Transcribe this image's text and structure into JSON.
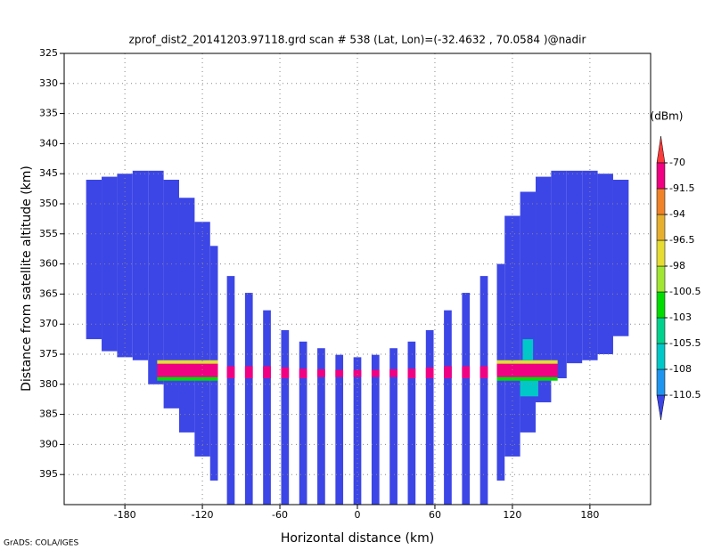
{
  "chart_data": {
    "type": "heatmap",
    "title": "zprof_dist2_20141203.97118.grd  scan # 538  (Lat, Lon)=(-32.4632 , 70.0584 )@nadir",
    "x_label": "Horizontal distance (km)",
    "y_label": "Distance from satellite altitude (km)",
    "footnote": "GrADS: COLA/IGES",
    "colorbar_label": "(dBm)",
    "xlim": [
      -227,
      227
    ],
    "ylim": [
      325,
      400
    ],
    "y_inverted": true,
    "grid": true,
    "xticks": [
      -180,
      -120,
      -60,
      0,
      60,
      120,
      180
    ],
    "yticks": [
      325,
      330,
      335,
      340,
      345,
      350,
      355,
      360,
      365,
      370,
      375,
      380,
      385,
      390,
      395
    ],
    "levels": [
      -110.5,
      -108,
      -105.5,
      -103,
      -100.5,
      -98,
      -96.5,
      -94,
      -91.5,
      -70
    ],
    "colors": [
      "#3c46e6",
      "#1e96f0",
      "#00c8c8",
      "#00d28c",
      "#00dc00",
      "#a0e632",
      "#e6dc32",
      "#e6af2d",
      "#f08228",
      "#f00082",
      "#fa3c3c"
    ],
    "cells": [
      [
        -210,
        -198,
        346,
        372.5,
        -112
      ],
      [
        -198,
        -186,
        345.5,
        374.5,
        -112
      ],
      [
        -186,
        -174,
        345,
        375.5,
        -112
      ],
      [
        -174,
        -162,
        344.5,
        376,
        -112
      ],
      [
        -162,
        -150,
        344.5,
        380,
        -112
      ],
      [
        -150,
        -138,
        346,
        384,
        -112
      ],
      [
        -138,
        -126,
        349,
        388,
        -112
      ],
      [
        -126,
        -114,
        353,
        392,
        -112
      ],
      [
        -114,
        -108,
        357,
        396,
        -112
      ],
      [
        -101,
        -95,
        362,
        400,
        -112
      ],
      [
        -87,
        -81,
        364.8,
        400,
        -112
      ],
      [
        -73,
        -67,
        367.7,
        400,
        -112
      ],
      [
        -59,
        -53,
        371,
        400,
        -112
      ],
      [
        -45,
        -39,
        372.9,
        400,
        -112
      ],
      [
        -31,
        -25,
        374,
        400,
        -112
      ],
      [
        -17,
        -11,
        375.1,
        400,
        -112
      ],
      [
        -3,
        3,
        375.5,
        400,
        -112
      ],
      [
        11,
        17,
        375.1,
        400,
        -112
      ],
      [
        25,
        31,
        374,
        400,
        -112
      ],
      [
        39,
        45,
        372.9,
        400,
        -112
      ],
      [
        53,
        59,
        371,
        400,
        -112
      ],
      [
        67,
        73,
        367.7,
        400,
        -112
      ],
      [
        81,
        87,
        364.8,
        400,
        -112
      ],
      [
        95,
        101,
        362,
        400,
        -112
      ],
      [
        108,
        114,
        360,
        396,
        -112
      ],
      [
        114,
        126,
        352,
        392,
        -112
      ],
      [
        126,
        138,
        348,
        388,
        -112
      ],
      [
        138,
        150,
        345.5,
        383,
        -112
      ],
      [
        150,
        162,
        344.5,
        379,
        -112
      ],
      [
        162,
        174,
        344.5,
        376.5,
        -112
      ],
      [
        174,
        186,
        344.5,
        376,
        -112
      ],
      [
        186,
        198,
        345,
        375,
        -112
      ],
      [
        198,
        210,
        346,
        372,
        -112
      ],
      [
        -155,
        -108,
        376,
        376.6,
        -97
      ],
      [
        -155,
        -108,
        376.6,
        378.8,
        -80
      ],
      [
        -155,
        -108,
        378.8,
        379.4,
        -101.5
      ],
      [
        108,
        155,
        376,
        376.6,
        -97
      ],
      [
        108,
        155,
        376.6,
        378.8,
        -80
      ],
      [
        108,
        155,
        378.8,
        379.4,
        -101.5
      ],
      [
        -101,
        -95,
        377,
        379,
        -80
      ],
      [
        -87,
        -81,
        377,
        379,
        -80
      ],
      [
        -73,
        -67,
        377,
        379,
        -80
      ],
      [
        -59,
        -53,
        377.2,
        379,
        -80
      ],
      [
        -45,
        -39,
        377.4,
        379,
        -80
      ],
      [
        -31,
        -25,
        377.5,
        378.8,
        -80
      ],
      [
        -17,
        -11,
        377.6,
        378.8,
        -80
      ],
      [
        -3,
        3,
        377.6,
        378.8,
        -80
      ],
      [
        11,
        17,
        377.6,
        378.8,
        -80
      ],
      [
        25,
        31,
        377.5,
        378.8,
        -80
      ],
      [
        39,
        45,
        377.4,
        379,
        -80
      ],
      [
        53,
        59,
        377.2,
        379,
        -80
      ],
      [
        67,
        73,
        377,
        379,
        -80
      ],
      [
        81,
        87,
        377,
        379,
        -80
      ],
      [
        95,
        101,
        377,
        379,
        -80
      ],
      [
        128,
        136,
        372.5,
        376,
        -106
      ],
      [
        126,
        140,
        379.4,
        382,
        -106
      ]
    ]
  }
}
